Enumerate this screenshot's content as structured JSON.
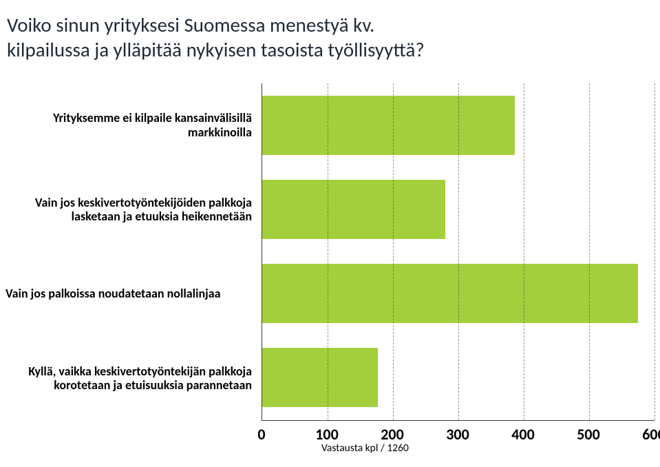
{
  "title_line1": "Voiko sinun yrityksesi Suomessa menestyä kv.",
  "title_line2": "kilpailussa ja ylläpitää nykyisen tasoista työllisyyttä?",
  "chart": {
    "type": "bar",
    "orientation": "horizontal",
    "xlim": [
      0,
      600
    ],
    "xtick_step": 100,
    "xticks": [
      0,
      100,
      200,
      300,
      400,
      500,
      600
    ],
    "xtitle": "Vastausta kpl / 1260",
    "grid_color": "rgba(60,60,60,0.55)",
    "axis_color": "#3a3a3a",
    "bar_color": "#a4cf3c",
    "background_color": "#ffffff",
    "label_fontsize": 18,
    "label_fontweight": "bold",
    "tick_fontsize": 22,
    "tick_fontweight": "bold",
    "items": [
      {
        "label": "Yrityksemme ei kilpaile kansainvälisillä markkinoilla",
        "value": 386
      },
      {
        "label": "Vain jos keskivertotyöntekijöiden palkkoja lasketaan ja etuuksia heikennetään",
        "value": 280
      },
      {
        "label": "Vain jos palkoissa noudatetaan nollalinjaa",
        "value": 575
      },
      {
        "label": "Kyllä, vaikka keskivertotyöntekijän palkkoja korotetaan ja etuisuuksia parannetaan",
        "value": 177
      }
    ]
  }
}
